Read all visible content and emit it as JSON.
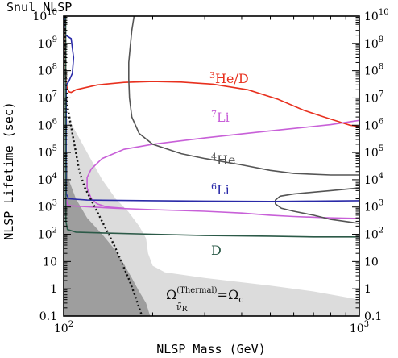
{
  "chart_data": {
    "type": "line",
    "title": "Snul NLSP",
    "xlabel": "NLSP Mass (GeV)",
    "ylabel": "NLSP Lifetime (sec)",
    "xscale": "log",
    "yscale": "log",
    "xlim": [
      100,
      1000
    ],
    "ylim": [
      0.1,
      10000000000
    ],
    "x_ticks": [
      100,
      1000
    ],
    "x_tick_labels": [
      "10",
      "10"
    ],
    "x_tick_exponents": [
      "2",
      "3"
    ],
    "y_ticks": [
      0.1,
      1,
      10,
      100,
      1000,
      10000,
      100000,
      1000000,
      10000000,
      100000000,
      1000000000,
      10000000000
    ],
    "y_tick_labels": [
      {
        "base": "0.1",
        "exp": ""
      },
      {
        "base": "1",
        "exp": ""
      },
      {
        "base": "10",
        "exp": ""
      },
      {
        "base": "10",
        "exp": "2"
      },
      {
        "base": "10",
        "exp": "3"
      },
      {
        "base": "10",
        "exp": "4"
      },
      {
        "base": "10",
        "exp": "5"
      },
      {
        "base": "10",
        "exp": "6"
      },
      {
        "base": "10",
        "exp": "7"
      },
      {
        "base": "10",
        "exp": "8"
      },
      {
        "base": "10",
        "exp": "9"
      },
      {
        "base": "10",
        "exp": "10"
      }
    ],
    "colors": {
      "he3": "#e8301e",
      "li7": "#c860d8",
      "he4": "#555555",
      "li6": "#2a2aa8",
      "d": "#2c5a48",
      "region_light": "#dcdcdc",
      "region_dark": "#9e9e9e",
      "dotted": "#111111"
    },
    "shaded_regions": [
      {
        "name": "light",
        "points": [
          [
            100,
            10000000000
          ],
          [
            102,
            10000000000
          ],
          [
            102,
            2000000
          ],
          [
            108,
            800000
          ],
          [
            120,
            100000
          ],
          [
            135,
            10000
          ],
          [
            150,
            2000
          ],
          [
            165,
            700
          ],
          [
            180,
            200
          ],
          [
            190,
            70
          ],
          [
            193,
            20
          ],
          [
            200,
            7
          ],
          [
            220,
            4
          ],
          [
            300,
            2.5
          ],
          [
            500,
            1.3
          ],
          [
            700,
            0.8
          ],
          [
            1000,
            0.4
          ],
          [
            1000,
            0.1
          ],
          [
            100,
            0.1
          ]
        ]
      },
      {
        "name": "dark",
        "points": [
          [
            100,
            10000000000
          ],
          [
            102,
            10000000000
          ],
          [
            102,
            100000
          ],
          [
            104,
            10000
          ],
          [
            110,
            2000
          ],
          [
            120,
            400
          ],
          [
            135,
            100
          ],
          [
            150,
            25
          ],
          [
            160,
            8
          ],
          [
            170,
            2.5
          ],
          [
            180,
            0.8
          ],
          [
            190,
            0.3
          ],
          [
            196,
            0.1
          ],
          [
            100,
            0.1
          ]
        ]
      }
    ],
    "series": [
      {
        "key": "he3",
        "label_base": "He/D",
        "label_pre": "3",
        "points": [
          [
            101.2,
            10000000000
          ],
          [
            101.5,
            100000000
          ],
          [
            102,
            30000000
          ],
          [
            104,
            17000000
          ],
          [
            106,
            16000000
          ],
          [
            110,
            20000000
          ],
          [
            130,
            30000000
          ],
          [
            160,
            37000000
          ],
          [
            200,
            40000000
          ],
          [
            250,
            38000000
          ],
          [
            320,
            32000000
          ],
          [
            420,
            20000000
          ],
          [
            530,
            9000000
          ],
          [
            650,
            3500000
          ],
          [
            760,
            2000000
          ],
          [
            860,
            1300000
          ],
          [
            930,
            1000000
          ],
          [
            1000,
            900000
          ]
        ]
      },
      {
        "key": "li7",
        "label_base": "Li",
        "label_pre": "7",
        "points": [
          [
            102,
            2000
          ],
          [
            103,
            1200
          ],
          [
            106,
            1100
          ],
          [
            150,
            900
          ],
          [
            200,
            800
          ],
          [
            300,
            700
          ],
          [
            400,
            600
          ],
          [
            500,
            500
          ],
          [
            600,
            450
          ],
          [
            800,
            400
          ],
          [
            1000,
            380
          ]
        ]
      },
      {
        "key": "li7",
        "label_base": "",
        "label_pre": "",
        "points": [
          [
            124,
            2000
          ],
          [
            120,
            5000
          ],
          [
            120,
            12000
          ],
          [
            124,
            25000
          ],
          [
            135,
            60000
          ],
          [
            160,
            130000
          ],
          [
            200,
            200000
          ],
          [
            300,
            340000
          ],
          [
            400,
            480000
          ],
          [
            500,
            620000
          ],
          [
            600,
            760000
          ],
          [
            800,
            1050000
          ],
          [
            1000,
            1500000
          ]
        ]
      },
      {
        "key": "li7",
        "label_base": "",
        "label_pre": "",
        "points": [
          [
            124,
            2000
          ],
          [
            130,
            1300
          ],
          [
            140,
            1000
          ],
          [
            160,
            900
          ]
        ]
      },
      {
        "key": "he4",
        "label_base": "He",
        "label_pre": "4",
        "points": [
          [
            173,
            10000000000
          ],
          [
            170,
            3000000000
          ],
          [
            168,
            800000000
          ],
          [
            166,
            200000000
          ],
          [
            166,
            50000000
          ],
          [
            167,
            10000000
          ],
          [
            170,
            2000000
          ],
          [
            180,
            500000
          ],
          [
            200,
            200000
          ],
          [
            250,
            90000
          ],
          [
            300,
            60000
          ],
          [
            400,
            35000
          ],
          [
            500,
            22000
          ],
          [
            600,
            17000
          ],
          [
            800,
            15000
          ],
          [
            1000,
            15000
          ]
        ]
      },
      {
        "key": "he4",
        "label_base": "",
        "label_pre": "",
        "points": [
          [
            1000,
            5000
          ],
          [
            800,
            4000
          ],
          [
            700,
            3500
          ],
          [
            600,
            3000
          ],
          [
            540,
            2500
          ],
          [
            520,
            1800
          ],
          [
            520,
            1300
          ],
          [
            545,
            900
          ],
          [
            600,
            700
          ],
          [
            700,
            500
          ],
          [
            800,
            350
          ],
          [
            1000,
            250
          ]
        ]
      },
      {
        "key": "li6",
        "label_base": "Li",
        "label_pre": "6",
        "points": [
          [
            101,
            10000000000
          ],
          [
            101.5,
            2000000000
          ],
          [
            106,
            1500000000
          ],
          [
            108,
            300000000
          ],
          [
            107,
            80000000
          ],
          [
            104,
            40000000
          ],
          [
            102,
            30000000
          ],
          [
            102,
            3000
          ],
          [
            104,
            2000
          ],
          [
            120,
            1800
          ],
          [
            200,
            1700
          ],
          [
            300,
            1650
          ],
          [
            500,
            1600
          ],
          [
            700,
            1650
          ],
          [
            1000,
            1700
          ]
        ]
      },
      {
        "key": "d",
        "label_base": "D",
        "label_pre": "",
        "points": [
          [
            101.5,
            10000000000
          ],
          [
            101.8,
            300
          ],
          [
            103,
            150
          ],
          [
            110,
            120
          ],
          [
            140,
            110
          ],
          [
            200,
            100
          ],
          [
            300,
            90
          ],
          [
            500,
            85
          ],
          [
            700,
            80
          ],
          [
            1000,
            80
          ]
        ]
      }
    ],
    "dotted_boundary": {
      "name": "Omega thermal",
      "points": [
        [
          101,
          10000000000
        ],
        [
          101.5,
          100000000
        ],
        [
          103,
          5000000
        ],
        [
          107,
          500000
        ],
        [
          110,
          100000
        ],
        [
          113,
          20000
        ],
        [
          118,
          5000
        ],
        [
          125,
          1500
        ],
        [
          133,
          400
        ],
        [
          142,
          100
        ],
        [
          150,
          30
        ],
        [
          158,
          8
        ],
        [
          167,
          2
        ],
        [
          175,
          0.5
        ],
        [
          184,
          0.1
        ]
      ]
    },
    "annotations": {
      "he3": "He/D",
      "he3_pre": "3",
      "li7": "Li",
      "li7_pre": "7",
      "he4": "He",
      "he4_pre": "4",
      "li6": "Li",
      "li6_pre": "6",
      "d": "D",
      "omega_main": "Ω",
      "omega_sup": "(Thermal)",
      "omega_sub": "ν̃",
      "omega_subsub": "R",
      "omega_eq": "=Ω",
      "omega_c": "c"
    },
    "grid": false,
    "legend": "none"
  }
}
